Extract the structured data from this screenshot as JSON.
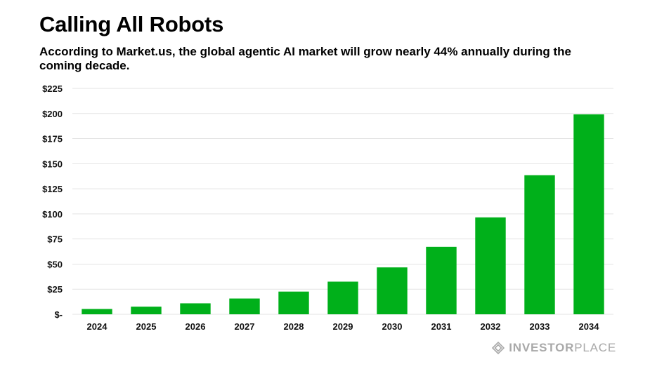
{
  "header": {
    "title": "Calling All Robots",
    "subtitle": "According to Market.us, the global agentic AI market will grow nearly 44% annually during the coming decade."
  },
  "chart_data": {
    "type": "bar",
    "categories": [
      "2024",
      "2025",
      "2026",
      "2027",
      "2028",
      "2029",
      "2030",
      "2031",
      "2032",
      "2033",
      "2034"
    ],
    "values": [
      5.3,
      7.6,
      10.9,
      15.7,
      22.6,
      32.5,
      46.7,
      67.2,
      96.5,
      138.5,
      199.1
    ],
    "y_ticks": [
      0,
      25,
      50,
      75,
      100,
      125,
      150,
      175,
      200,
      225
    ],
    "y_tick_labels": [
      "$-",
      "$25",
      "$50",
      "$75",
      "$100",
      "$125",
      "$150",
      "$175",
      "$200",
      "$225"
    ],
    "ylim": [
      0,
      225
    ],
    "grid": true,
    "bar_color": "#00b01a",
    "grid_color": "#e3e3e3",
    "xlabel": "",
    "ylabel": ""
  },
  "brand": {
    "icon": "diamond-logo-icon",
    "name_part1": "INVESTOR",
    "name_part2": "PLACE",
    "color": "#a9a9a9"
  }
}
